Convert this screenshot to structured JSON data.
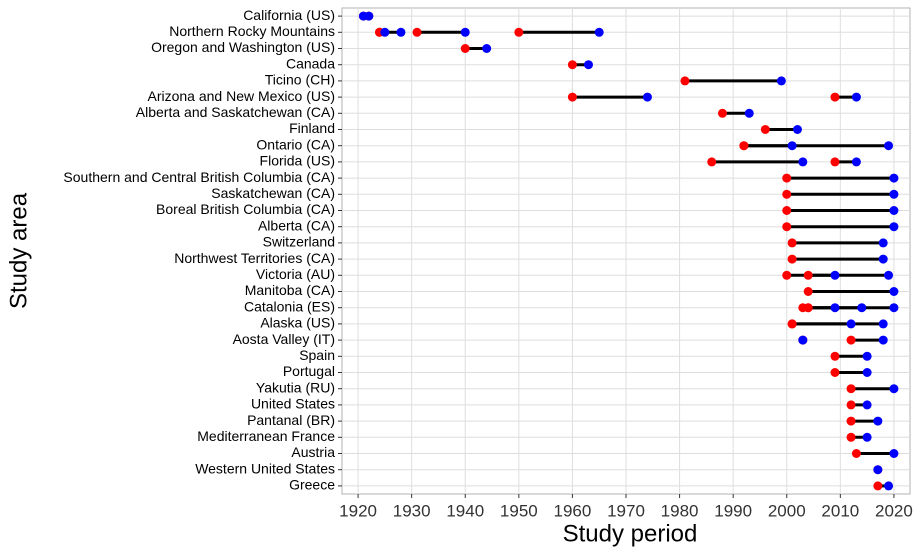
{
  "chart_data": {
    "type": "dumbbell",
    "x_label": "Study period",
    "y_label": "Study area",
    "xlim": [
      1917,
      2023
    ],
    "xticks": [
      1920,
      1930,
      1940,
      1950,
      1960,
      1970,
      1980,
      1990,
      2000,
      2010,
      2020
    ],
    "grid": true,
    "start_color": "#ff0000",
    "end_color": "#0000ff",
    "line_color": "#000000",
    "rows": [
      {
        "label": "California (US)",
        "periods": [
          [
            1921,
            1921
          ],
          [
            1922,
            1922
          ]
        ]
      },
      {
        "label": "Northern Rocky Mountains",
        "periods": [
          [
            1924,
            1925
          ],
          [
            1924,
            1928
          ],
          [
            1931,
            1940
          ],
          [
            1950,
            1965
          ]
        ]
      },
      {
        "label": "Oregon and Washington (US)",
        "periods": [
          [
            1940,
            1944
          ]
        ]
      },
      {
        "label": "Canada",
        "periods": [
          [
            1960,
            1963
          ]
        ]
      },
      {
        "label": "Ticino (CH)",
        "periods": [
          [
            1981,
            1999
          ]
        ]
      },
      {
        "label": "Arizona and New Mexico (US)",
        "periods": [
          [
            1960,
            1974
          ],
          [
            2009,
            2013
          ]
        ]
      },
      {
        "label": "Alberta and Saskatchewan (CA)",
        "periods": [
          [
            1988,
            1993
          ]
        ]
      },
      {
        "label": "Finland",
        "periods": [
          [
            1996,
            2002
          ]
        ]
      },
      {
        "label": "Ontario (CA)",
        "periods": [
          [
            1992,
            2001
          ],
          [
            1992,
            2019
          ]
        ]
      },
      {
        "label": "Florida (US)",
        "periods": [
          [
            1986,
            2003
          ],
          [
            2009,
            2013
          ]
        ]
      },
      {
        "label": "Southern and Central British Columbia (CA)",
        "periods": [
          [
            2000,
            2020
          ]
        ]
      },
      {
        "label": "Saskatchewan (CA)",
        "periods": [
          [
            2000,
            2020
          ]
        ]
      },
      {
        "label": "Boreal British Columbia (CA)",
        "periods": [
          [
            2000,
            2020
          ]
        ]
      },
      {
        "label": "Alberta (CA)",
        "periods": [
          [
            2000,
            2020
          ]
        ]
      },
      {
        "label": "Switzerland",
        "periods": [
          [
            2001,
            2018
          ]
        ]
      },
      {
        "label": "Northwest Territories (CA)",
        "periods": [
          [
            2001,
            2018
          ]
        ]
      },
      {
        "label": "Victoria (AU)",
        "periods": [
          [
            2000,
            2009
          ],
          [
            2004,
            2019
          ]
        ]
      },
      {
        "label": "Manitoba (CA)",
        "periods": [
          [
            2004,
            2020
          ]
        ]
      },
      {
        "label": "Catalonia (ES)",
        "periods": [
          [
            2003,
            2009
          ],
          [
            2004,
            2014
          ],
          [
            2004,
            2020
          ]
        ]
      },
      {
        "label": "Alaska (US)",
        "periods": [
          [
            2001,
            2012
          ],
          [
            2001,
            2018
          ]
        ]
      },
      {
        "label": "Aosta Valley (IT)",
        "periods": [
          [
            2003,
            2003
          ],
          [
            2012,
            2018
          ]
        ]
      },
      {
        "label": "Spain",
        "periods": [
          [
            2009,
            2015
          ]
        ]
      },
      {
        "label": "Portugal",
        "periods": [
          [
            2009,
            2015
          ]
        ]
      },
      {
        "label": "Yakutia (RU)",
        "periods": [
          [
            2012,
            2020
          ]
        ]
      },
      {
        "label": "United States",
        "periods": [
          [
            2012,
            2015
          ]
        ]
      },
      {
        "label": "Pantanal (BR)",
        "periods": [
          [
            2012,
            2017
          ]
        ]
      },
      {
        "label": "Mediterranean France",
        "periods": [
          [
            2012,
            2015
          ]
        ]
      },
      {
        "label": "Austria",
        "periods": [
          [
            2013,
            2020
          ]
        ]
      },
      {
        "label": "Western United States",
        "periods": [
          [
            2017,
            2017
          ]
        ]
      },
      {
        "label": "Greece",
        "periods": [
          [
            2017,
            2019
          ]
        ]
      }
    ]
  }
}
